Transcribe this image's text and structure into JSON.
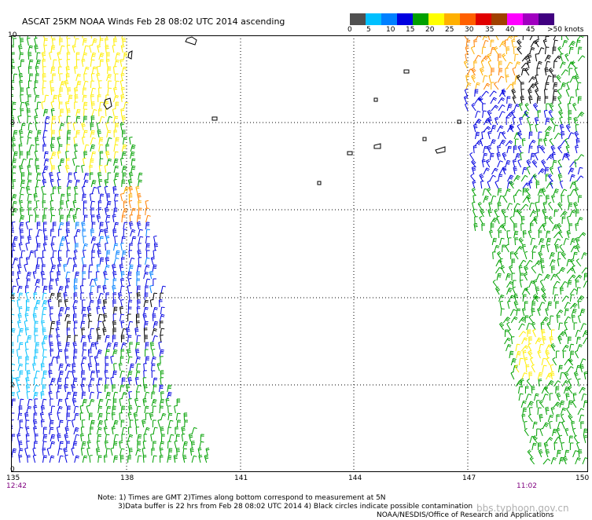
{
  "title": "ASCAT 25KM NOAA Winds Feb 28 08:02 UTC 2014 ascending",
  "legend": {
    "labels": [
      "0",
      "5",
      "10",
      "15",
      "20",
      "25",
      "30",
      "35",
      "40",
      "45",
      ">50 knots"
    ],
    "colors": [
      "#505050",
      "#00c0ff",
      "#0080ff",
      "#0000e0",
      "#00a000",
      "#ffff00",
      "#ffb000",
      "#ff6000",
      "#e00000",
      "#a04000",
      "#ff00ff",
      "#a000c0",
      "#400080"
    ]
  },
  "latitude_labels": [
    "10",
    "8",
    "6",
    "4",
    "2",
    "0"
  ],
  "longitude_labels": [
    "135",
    "138",
    "141",
    "144",
    "147",
    "150"
  ],
  "pass_times": {
    "left": "12:42",
    "right": "11:02"
  },
  "notes": {
    "line1": "Note: 1) Times are GMT 2)Times along bottom correspond to measurement at 5N",
    "line2": "3)Data buffer is 22 hrs from Feb 28 08:02 UTC 2014 4) Black circles indicate possible contamination"
  },
  "credit": "NOAA/NESDIS/Office of Research and Applications",
  "watermark": "bbs.typhoon.gov.cn"
}
